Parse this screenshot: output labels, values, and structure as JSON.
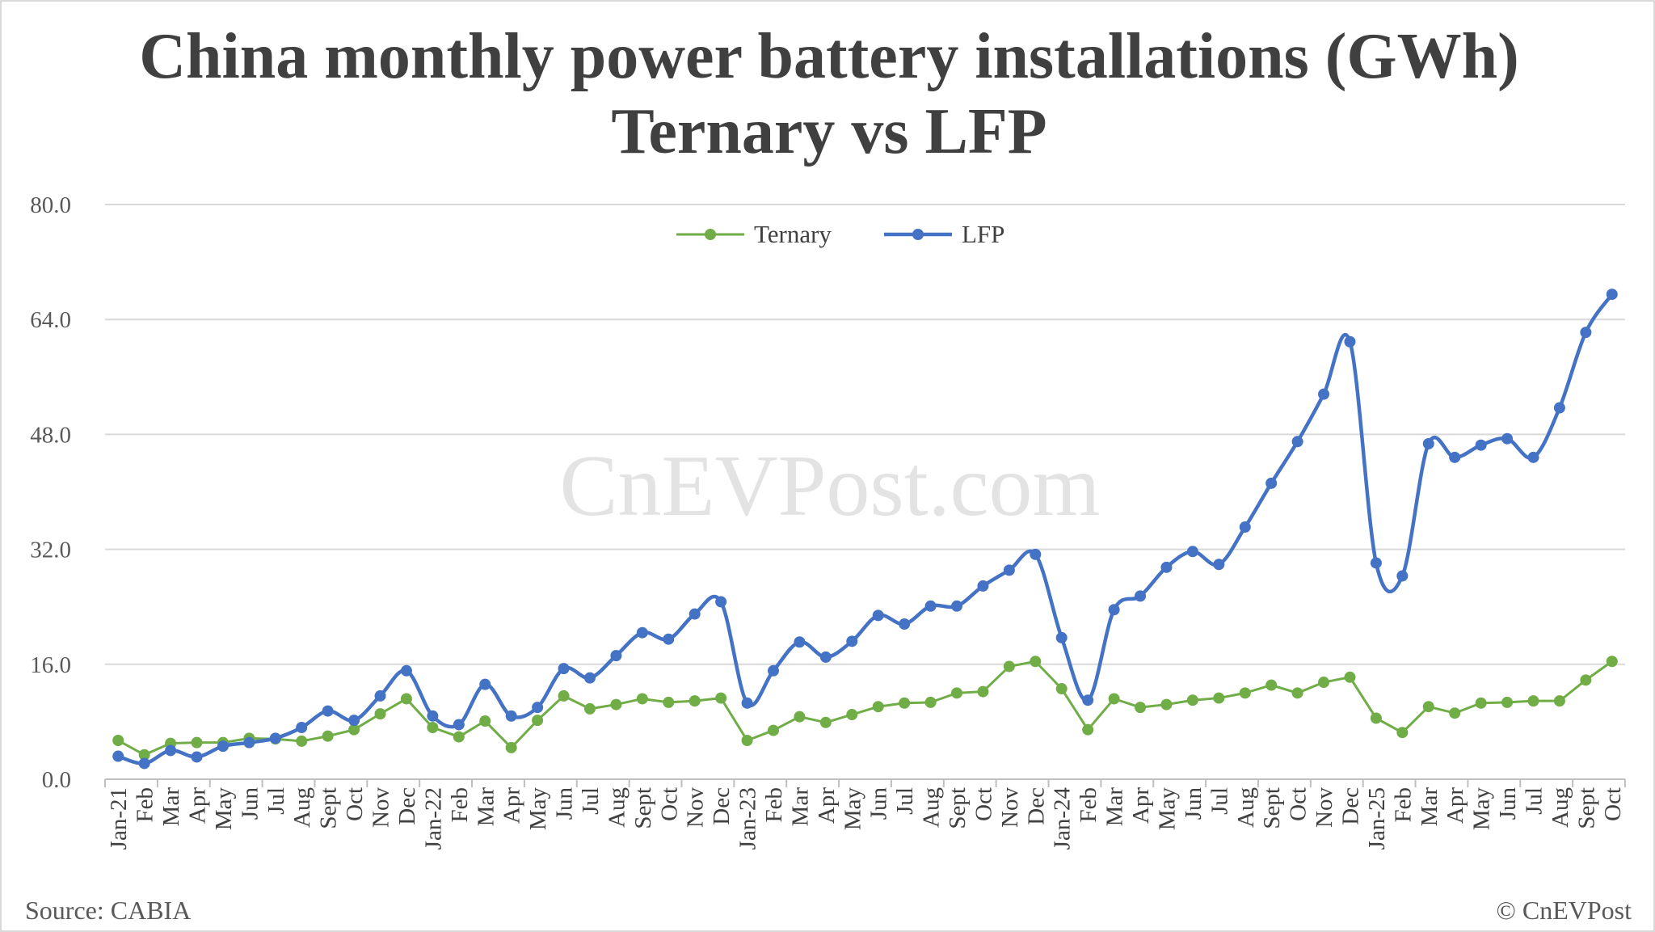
{
  "chart_data": {
    "type": "line",
    "title": "China monthly power battery installations (GWh)",
    "subtitle": "Ternary vs LFP",
    "xlabel": "",
    "ylabel": "",
    "ylim": [
      0,
      80
    ],
    "yticks": [
      "0.0",
      "16.0",
      "32.0",
      "48.0",
      "64.0",
      "80.0"
    ],
    "grid": true,
    "legend_position": "top-center",
    "categories": [
      "Jan-21",
      "Feb",
      "Mar",
      "Apr",
      "May",
      "Jun",
      "Jul",
      "Aug",
      "Sept",
      "Oct",
      "Nov",
      "Dec",
      "Jan-22",
      "Feb",
      "Mar",
      "Apr",
      "May",
      "Jun",
      "Jul",
      "Aug",
      "Sept",
      "Oct",
      "Nov",
      "Dec",
      "Jan-23",
      "Feb",
      "Mar",
      "Apr",
      "May",
      "Jun",
      "Jul",
      "Aug",
      "Sept",
      "Oct",
      "Nov",
      "Dec",
      "Jan-24",
      "Feb",
      "Mar",
      "Apr",
      "May",
      "Jun",
      "Jul",
      "Aug",
      "Sept",
      "Oct",
      "Nov",
      "Dec",
      "Jan-25",
      "Feb",
      "Mar",
      "Apr",
      "May",
      "Jun",
      "Jul",
      "Aug",
      "Sept",
      "Oct"
    ],
    "series": [
      {
        "name": "Ternary",
        "color": "#70ad47",
        "smooth": false,
        "values": [
          5.4,
          3.4,
          5.0,
          5.1,
          5.1,
          5.7,
          5.6,
          5.3,
          6.0,
          6.9,
          9.1,
          11.2,
          7.2,
          5.9,
          8.1,
          4.4,
          8.2,
          11.6,
          9.8,
          10.4,
          11.2,
          10.7,
          10.9,
          11.3,
          5.4,
          6.8,
          8.7,
          7.9,
          9.0,
          10.1,
          10.6,
          10.7,
          12.0,
          12.2,
          15.7,
          16.4,
          12.6,
          6.9,
          11.2,
          10.0,
          10.4,
          11.0,
          11.3,
          12.0,
          13.1,
          12.0,
          13.5,
          14.2,
          8.5,
          6.5,
          10.1,
          9.2,
          10.6,
          10.7,
          10.9,
          10.9,
          13.8,
          16.4
        ]
      },
      {
        "name": "LFP",
        "color": "#4472c4",
        "smooth": true,
        "values": [
          3.2,
          2.2,
          4.0,
          3.1,
          4.6,
          5.1,
          5.7,
          7.2,
          9.5,
          8.2,
          11.6,
          15.1,
          8.8,
          7.6,
          13.2,
          8.8,
          10.0,
          15.4,
          14.1,
          17.2,
          20.4,
          19.5,
          23.0,
          24.7,
          10.6,
          15.1,
          19.1,
          17.0,
          19.2,
          22.8,
          21.6,
          24.1,
          24.1,
          26.9,
          29.1,
          31.3,
          19.7,
          11.0,
          23.6,
          25.5,
          29.5,
          31.7,
          29.9,
          35.1,
          41.2,
          47.0,
          53.6,
          60.9,
          30.1,
          28.3,
          46.7,
          44.8,
          46.5,
          47.4,
          44.8,
          51.7,
          62.2,
          67.5
        ]
      }
    ]
  },
  "watermark": "CnEVPost.com",
  "footer": {
    "source": "Source: CABIA",
    "copyright": "© CnEVPost"
  }
}
